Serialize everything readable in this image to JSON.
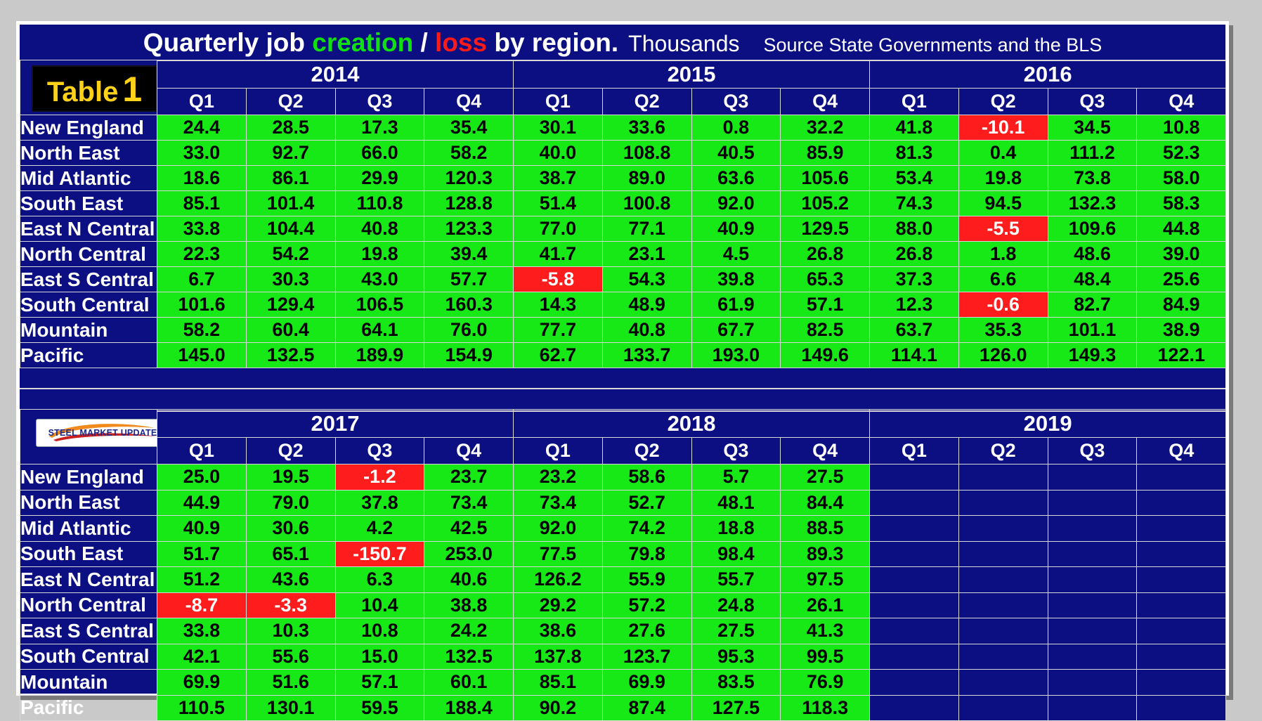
{
  "title": {
    "prefix": "Quarterly job ",
    "creation": "creation",
    "slash": " / ",
    "loss": "loss",
    "suffix": " by region.",
    "units": "Thousands",
    "source": "Source State Governments and the BLS"
  },
  "table_label": {
    "word": "Table",
    "number": "1"
  },
  "logo": {
    "text": "STEEL MARKET UPDATE"
  },
  "colors": {
    "background": "#0b0f82",
    "positive": "#17e917",
    "negative": "#ff1c1c",
    "creation_text": "#10e010",
    "loss_text": "#ff1a1a",
    "label_text": "#ffd21a"
  },
  "chart_data": {
    "type": "table",
    "title": "Quarterly job creation / loss by region. Thousands",
    "subtitle": "Source State Governments and the BLS",
    "quarters": [
      "Q1",
      "Q2",
      "Q3",
      "Q4"
    ],
    "regions": [
      "New England",
      "North East",
      "Mid Atlantic",
      "South East",
      "East N Central",
      "North Central",
      "East S Central",
      "South Central",
      "Mountain",
      "Pacific"
    ],
    "top_years": [
      "2014",
      "2015",
      "2016"
    ],
    "bottom_years": [
      "2017",
      "2018",
      "2019"
    ],
    "top_rows": [
      [
        "24.4",
        "28.5",
        "17.3",
        "35.4",
        "30.1",
        "33.6",
        "0.8",
        "32.2",
        "41.8",
        "-10.1",
        "34.5",
        "10.8"
      ],
      [
        "33.0",
        "92.7",
        "66.0",
        "58.2",
        "40.0",
        "108.8",
        "40.5",
        "85.9",
        "81.3",
        "0.4",
        "111.2",
        "52.3"
      ],
      [
        "18.6",
        "86.1",
        "29.9",
        "120.3",
        "38.7",
        "89.0",
        "63.6",
        "105.6",
        "53.4",
        "19.8",
        "73.8",
        "58.0"
      ],
      [
        "85.1",
        "101.4",
        "110.8",
        "128.8",
        "51.4",
        "100.8",
        "92.0",
        "105.2",
        "74.3",
        "94.5",
        "132.3",
        "58.3"
      ],
      [
        "33.8",
        "104.4",
        "40.8",
        "123.3",
        "77.0",
        "77.1",
        "40.9",
        "129.5",
        "88.0",
        "-5.5",
        "109.6",
        "44.8"
      ],
      [
        "22.3",
        "54.2",
        "19.8",
        "39.4",
        "41.7",
        "23.1",
        "4.5",
        "26.8",
        "26.8",
        "1.8",
        "48.6",
        "39.0"
      ],
      [
        "6.7",
        "30.3",
        "43.0",
        "57.7",
        "-5.8",
        "54.3",
        "39.8",
        "65.3",
        "37.3",
        "6.6",
        "48.4",
        "25.6"
      ],
      [
        "101.6",
        "129.4",
        "106.5",
        "160.3",
        "14.3",
        "48.9",
        "61.9",
        "57.1",
        "12.3",
        "-0.6",
        "82.7",
        "84.9"
      ],
      [
        "58.2",
        "60.4",
        "64.1",
        "76.0",
        "77.7",
        "40.8",
        "67.7",
        "82.5",
        "63.7",
        "35.3",
        "101.1",
        "38.9"
      ],
      [
        "145.0",
        "132.5",
        "189.9",
        "154.9",
        "62.7",
        "133.7",
        "193.0",
        "149.6",
        "114.1",
        "126.0",
        "149.3",
        "122.1"
      ]
    ],
    "bottom_rows": [
      [
        "25.0",
        "19.5",
        "-1.2",
        "23.7",
        "23.2",
        "58.6",
        "5.7",
        "27.5",
        "",
        "",
        "",
        ""
      ],
      [
        "44.9",
        "79.0",
        "37.8",
        "73.4",
        "73.4",
        "52.7",
        "48.1",
        "84.4",
        "",
        "",
        "",
        ""
      ],
      [
        "40.9",
        "30.6",
        "4.2",
        "42.5",
        "92.0",
        "74.2",
        "18.8",
        "88.5",
        "",
        "",
        "",
        ""
      ],
      [
        "51.7",
        "65.1",
        "-150.7",
        "253.0",
        "77.5",
        "79.8",
        "98.4",
        "89.3",
        "",
        "",
        "",
        ""
      ],
      [
        "51.2",
        "43.6",
        "6.3",
        "40.6",
        "126.2",
        "55.9",
        "55.7",
        "97.5",
        "",
        "",
        "",
        ""
      ],
      [
        "-8.7",
        "-3.3",
        "10.4",
        "38.8",
        "29.2",
        "57.2",
        "24.8",
        "26.1",
        "",
        "",
        "",
        ""
      ],
      [
        "33.8",
        "10.3",
        "10.8",
        "24.2",
        "38.6",
        "27.6",
        "27.5",
        "41.3",
        "",
        "",
        "",
        ""
      ],
      [
        "42.1",
        "55.6",
        "15.0",
        "132.5",
        "137.8",
        "123.7",
        "95.3",
        "99.5",
        "",
        "",
        "",
        ""
      ],
      [
        "69.9",
        "51.6",
        "57.1",
        "60.1",
        "85.1",
        "69.9",
        "83.5",
        "76.9",
        "",
        "",
        "",
        ""
      ],
      [
        "110.5",
        "130.1",
        "59.5",
        "188.4",
        "90.2",
        "87.4",
        "127.5",
        "118.3",
        "",
        "",
        "",
        ""
      ]
    ]
  }
}
